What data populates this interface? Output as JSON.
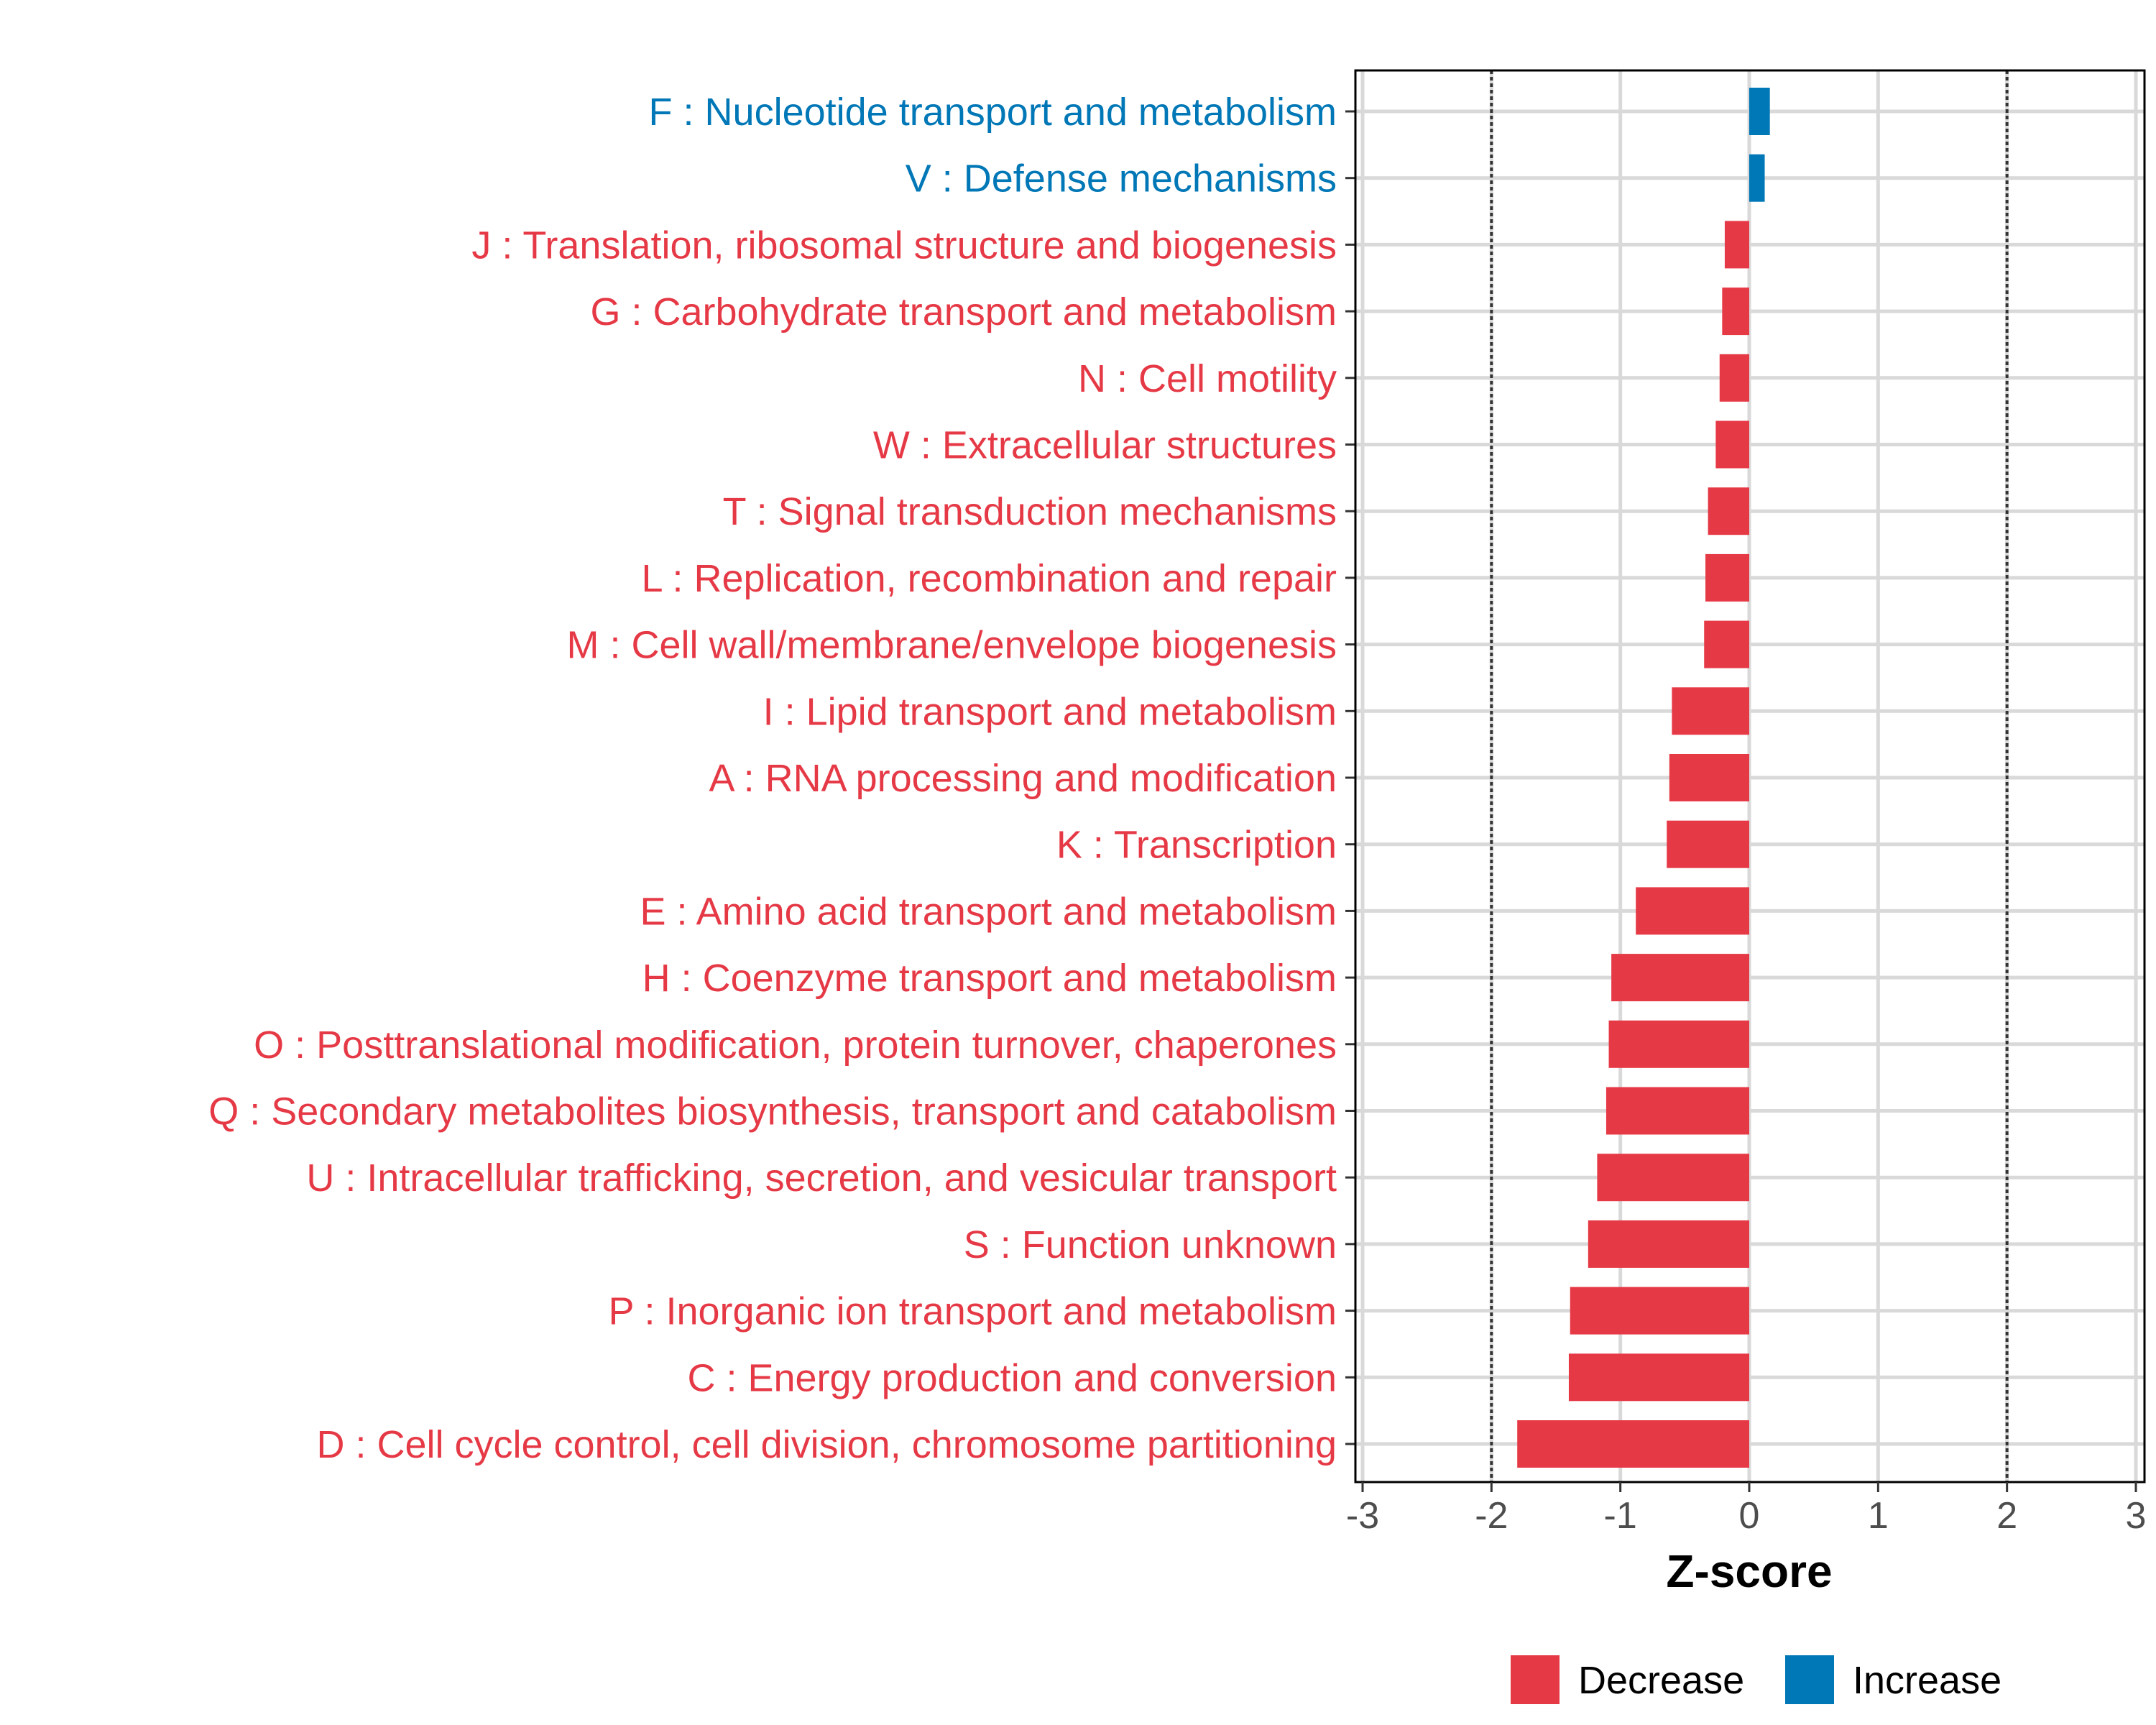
{
  "chart_data": {
    "type": "bar",
    "orientation": "horizontal",
    "title": "",
    "xlabel": "Z-score",
    "ylabel": "",
    "xlim": [
      -3,
      3
    ],
    "xticks": [
      -3,
      -2,
      -1,
      0,
      1,
      2,
      3
    ],
    "reference_lines": [
      -2,
      2
    ],
    "grid": true,
    "legend_position": "bottom",
    "colors": {
      "Decrease": "#E63946",
      "Increase": "#0077B6"
    },
    "legend": [
      {
        "name": "Decrease",
        "color": "#E63946"
      },
      {
        "name": "Increase",
        "color": "#0077B6"
      }
    ],
    "categories": [
      "F : Nucleotide transport and metabolism",
      "V : Defense mechanisms",
      "J : Translation, ribosomal structure and biogenesis",
      "G : Carbohydrate transport and metabolism",
      "N : Cell motility",
      "W : Extracellular structures",
      "T : Signal transduction mechanisms",
      "L : Replication, recombination and repair",
      "M : Cell wall/membrane/envelope biogenesis",
      "I : Lipid transport and metabolism",
      "A : RNA processing and modification",
      "K : Transcription",
      "E : Amino acid transport and metabolism",
      "H : Coenzyme transport and metabolism",
      "O : Posttranslational modification, protein turnover, chaperones",
      "Q : Secondary metabolites biosynthesis, transport and catabolism",
      "U : Intracellular trafficking, secretion, and vesicular transport",
      "S : Function unknown",
      "P : Inorganic ion transport and metabolism",
      "C : Energy production and conversion",
      "D : Cell cycle control, cell division, chromosome partitioning"
    ],
    "values": [
      0.16,
      0.12,
      -0.19,
      -0.21,
      -0.23,
      -0.26,
      -0.32,
      -0.34,
      -0.35,
      -0.6,
      -0.62,
      -0.64,
      -0.88,
      -1.07,
      -1.09,
      -1.11,
      -1.18,
      -1.25,
      -1.39,
      -1.4,
      -1.8
    ],
    "groups": [
      "Increase",
      "Increase",
      "Decrease",
      "Decrease",
      "Decrease",
      "Decrease",
      "Decrease",
      "Decrease",
      "Decrease",
      "Decrease",
      "Decrease",
      "Decrease",
      "Decrease",
      "Decrease",
      "Decrease",
      "Decrease",
      "Decrease",
      "Decrease",
      "Decrease",
      "Decrease",
      "Decrease"
    ]
  }
}
